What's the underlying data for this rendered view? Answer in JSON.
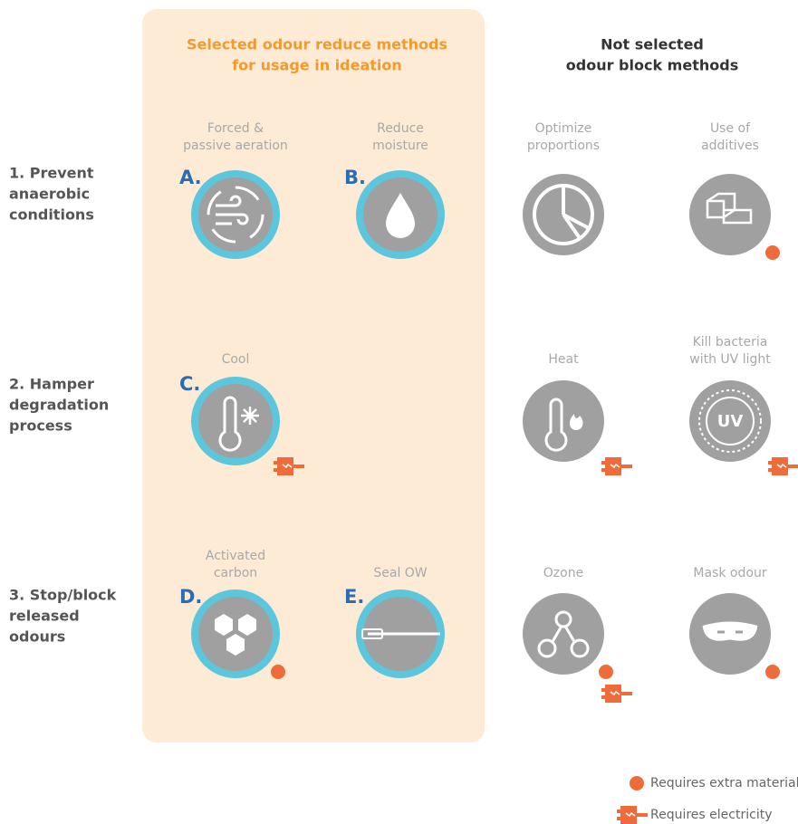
{
  "headers": {
    "selected": [
      "Selected odour reduce methods",
      "for usage in ideation"
    ],
    "not_selected": [
      "Not selected",
      "odour block methods"
    ]
  },
  "rows": [
    {
      "label": [
        "1. Prevent",
        "anaerobic",
        "conditions"
      ],
      "methods": [
        {
          "label": [
            "Forced &",
            "passive aeration"
          ],
          "letter": "A.",
          "selected": true,
          "material": false,
          "electricity": false
        },
        {
          "label": [
            "Reduce",
            "moisture"
          ],
          "letter": "B.",
          "selected": true,
          "material": false,
          "electricity": false
        },
        {
          "label": [
            "Optimize",
            "proportions"
          ],
          "selected": false,
          "material": false,
          "electricity": false
        },
        {
          "label": [
            "Use of",
            "additives"
          ],
          "selected": false,
          "material": true,
          "electricity": false
        }
      ]
    },
    {
      "label": [
        "2. Hamper",
        "degradation",
        "process"
      ],
      "methods": [
        {
          "label": [
            "Cool"
          ],
          "letter": "C.",
          "selected": true,
          "material": false,
          "electricity": true
        },
        null,
        {
          "label": [
            "Heat"
          ],
          "selected": false,
          "material": false,
          "electricity": true
        },
        {
          "label": [
            "Kill bacteria",
            "with UV light"
          ],
          "icon_text": "UV",
          "selected": false,
          "material": false,
          "electricity": true
        }
      ]
    },
    {
      "label": [
        "3. Stop/block",
        "released",
        "odours"
      ],
      "methods": [
        {
          "label": [
            "Activated",
            "carbon"
          ],
          "letter": "D.",
          "selected": true,
          "material": true,
          "electricity": false
        },
        {
          "label": [
            "Seal OW"
          ],
          "letter": "E.",
          "selected": true,
          "material": false,
          "electricity": false
        },
        {
          "label": [
            "Ozone"
          ],
          "selected": false,
          "material": true,
          "electricity": true
        },
        {
          "label": [
            "Mask odour"
          ],
          "selected": false,
          "material": true,
          "electricity": false
        }
      ]
    }
  ],
  "legend": {
    "material": "Requires extra material",
    "electricity": "Requires electricity"
  }
}
